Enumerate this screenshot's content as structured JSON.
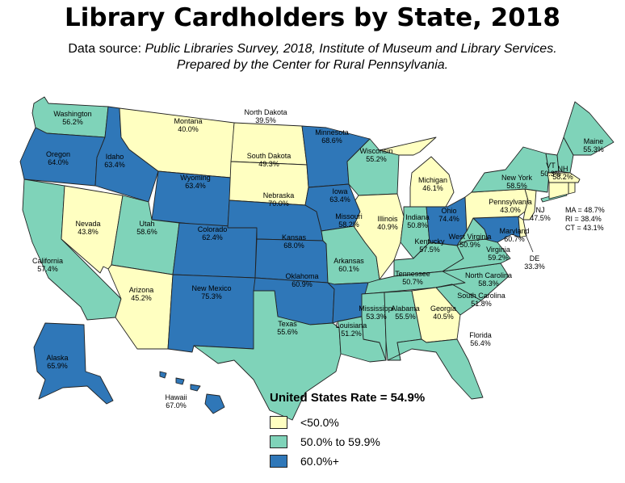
{
  "title": "Library Cardholders by State, 2018",
  "subtitle_prefix": "Data source: ",
  "subtitle_source": "Public Libraries Survey, 2018, Institute of Museum and Library Services.",
  "subtitle_line2": "Prepared by the Center for Rural Pennsylvania.",
  "colors": {
    "low": "#ffffc1",
    "mid": "#7fd3b9",
    "high": "#2f77b8",
    "border": "#222222"
  },
  "legend": {
    "title": "United States Rate = 54.9%",
    "items": [
      {
        "label": "<50.0%",
        "class": "low"
      },
      {
        "label": "50.0% to 59.9%",
        "class": "mid"
      },
      {
        "label": "60.0%+",
        "class": "high"
      }
    ]
  },
  "states": [
    {
      "id": "WA",
      "name": "Washington",
      "value": "56.2%",
      "class": "mid"
    },
    {
      "id": "OR",
      "name": "Oregon",
      "value": "64.0%",
      "class": "high"
    },
    {
      "id": "CA",
      "name": "California",
      "value": "57.4%",
      "class": "mid"
    },
    {
      "id": "ID",
      "name": "Idaho",
      "value": "63.4%",
      "class": "high"
    },
    {
      "id": "NV",
      "name": "Nevada",
      "value": "43.8%",
      "class": "low"
    },
    {
      "id": "MT",
      "name": "Montana",
      "value": "40.0%",
      "class": "low"
    },
    {
      "id": "WY",
      "name": "Wyoming",
      "value": "63.4%",
      "class": "high"
    },
    {
      "id": "UT",
      "name": "Utah",
      "value": "58.6%",
      "class": "mid"
    },
    {
      "id": "AZ",
      "name": "Arizona",
      "value": "45.2%",
      "class": "low"
    },
    {
      "id": "CO",
      "name": "Colorado",
      "value": "62.4%",
      "class": "high"
    },
    {
      "id": "NM",
      "name": "New Mexico",
      "value": "75.3%",
      "class": "high"
    },
    {
      "id": "ND",
      "name": "North Dakota",
      "value": "39.5%",
      "class": "low"
    },
    {
      "id": "SD",
      "name": "South Dakota",
      "value": "49.3%",
      "class": "low"
    },
    {
      "id": "NE",
      "name": "Nebraska",
      "value": "70.0%",
      "class": "high"
    },
    {
      "id": "KS",
      "name": "Kansas",
      "value": "68.0%",
      "class": "high"
    },
    {
      "id": "OK",
      "name": "Oklahoma",
      "value": "60.9%",
      "class": "high"
    },
    {
      "id": "TX",
      "name": "Texas",
      "value": "55.6%",
      "class": "mid"
    },
    {
      "id": "MN",
      "name": "Minnesota",
      "value": "68.6%",
      "class": "high"
    },
    {
      "id": "IA",
      "name": "Iowa",
      "value": "63.4%",
      "class": "high"
    },
    {
      "id": "MO",
      "name": "Missouri",
      "value": "58.2%",
      "class": "mid"
    },
    {
      "id": "AR",
      "name": "Arkansas",
      "value": "60.1%",
      "class": "high"
    },
    {
      "id": "LA",
      "name": "Louisiana",
      "value": "51.2%",
      "class": "mid"
    },
    {
      "id": "WI",
      "name": "Wisconsin",
      "value": "55.2%",
      "class": "mid"
    },
    {
      "id": "IL",
      "name": "Illinois",
      "value": "40.9%",
      "class": "low"
    },
    {
      "id": "MI",
      "name": "Michigan",
      "value": "46.1%",
      "class": "low"
    },
    {
      "id": "IN",
      "name": "Indiana",
      "value": "50.8%",
      "class": "mid"
    },
    {
      "id": "OH",
      "name": "Ohio",
      "value": "74.4%",
      "class": "high"
    },
    {
      "id": "KY",
      "name": "Kentucky",
      "value": "57.5%",
      "class": "mid"
    },
    {
      "id": "TN",
      "name": "Tennessee",
      "value": "50.7%",
      "class": "mid"
    },
    {
      "id": "MS",
      "name": "Mississippi",
      "value": "53.3%",
      "class": "mid"
    },
    {
      "id": "AL",
      "name": "Alabama",
      "value": "55.5%",
      "class": "mid"
    },
    {
      "id": "GA",
      "name": "Georgia",
      "value": "40.5%",
      "class": "low"
    },
    {
      "id": "FL",
      "name": "Florida",
      "value": "56.4%",
      "class": "mid"
    },
    {
      "id": "SC",
      "name": "South Carolina",
      "value": "51.8%",
      "class": "mid"
    },
    {
      "id": "NC",
      "name": "North Carolina",
      "value": "58.3%",
      "class": "mid"
    },
    {
      "id": "VA",
      "name": "Virginia",
      "value": "59.2%",
      "class": "mid"
    },
    {
      "id": "WV",
      "name": "West Virginia",
      "value": "50.9%",
      "class": "mid"
    },
    {
      "id": "MD",
      "name": "Maryland",
      "value": "60.7%",
      "class": "high"
    },
    {
      "id": "DE",
      "name": "DE",
      "value": "33.3%",
      "class": "low"
    },
    {
      "id": "PA",
      "name": "Pennsylvania",
      "value": "43.0%",
      "class": "low"
    },
    {
      "id": "NJ",
      "name": "NJ",
      "value": "47.5%",
      "class": "low"
    },
    {
      "id": "NY",
      "name": "New York",
      "value": "58.5%",
      "class": "mid"
    },
    {
      "id": "VT",
      "name": "VT",
      "value": "50.3%",
      "class": "mid"
    },
    {
      "id": "NH",
      "name": "NH",
      "value": "58.2%",
      "class": "mid"
    },
    {
      "id": "ME",
      "name": "Maine",
      "value": "55.3%",
      "class": "mid"
    },
    {
      "id": "MA",
      "name": "MA",
      "value": "48.7%",
      "class": "low"
    },
    {
      "id": "RI",
      "name": "RI",
      "value": "38.4%",
      "class": "low"
    },
    {
      "id": "CT",
      "name": "CT",
      "value": "43.1%",
      "class": "low"
    },
    {
      "id": "AK",
      "name": "Alaska",
      "value": "65.9%",
      "class": "high"
    },
    {
      "id": "HI",
      "name": "Hawaii",
      "value": "67.0%",
      "class": "high"
    }
  ],
  "ne_callouts": [
    {
      "text": "MA =  48.7%"
    },
    {
      "text": "RI = 38.4%"
    },
    {
      "text": "CT = 43.1%"
    }
  ]
}
